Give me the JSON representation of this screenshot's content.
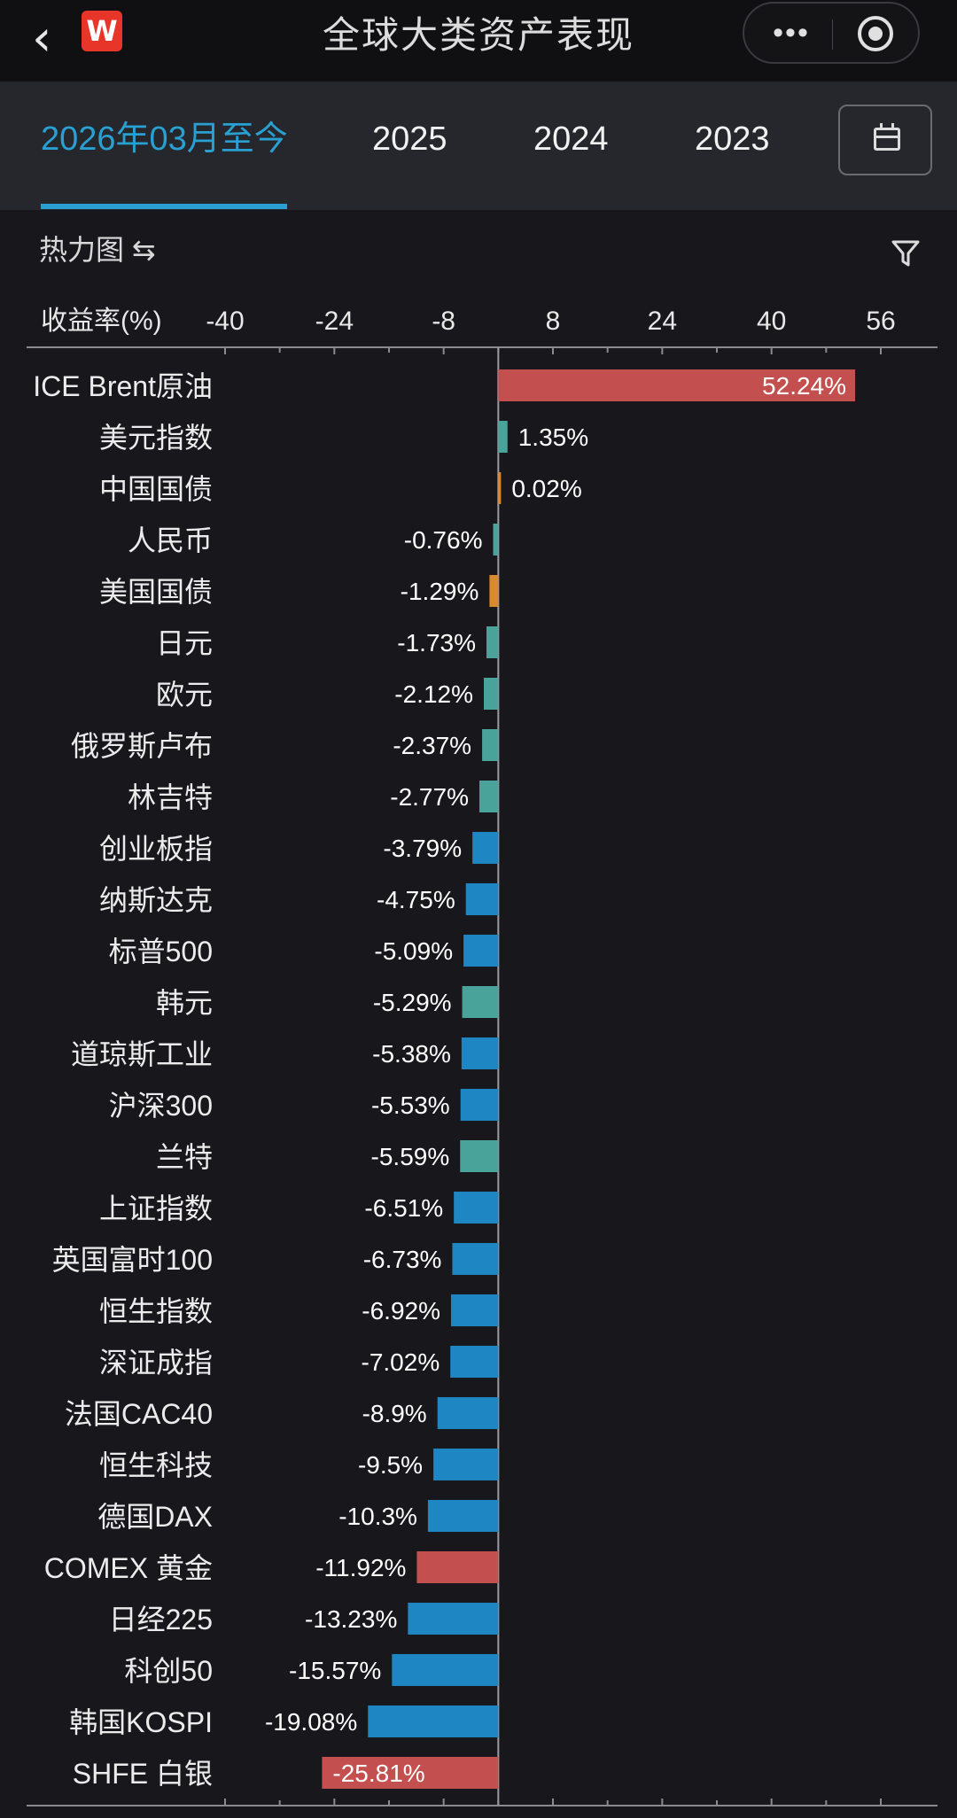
{
  "nav": {
    "back_icon": "chevron-left-icon",
    "logo_letter": "W",
    "title": "全球大类资产表现",
    "more_icon": "more-dots-icon",
    "more_glyph": "•••",
    "target_icon": "target-circle-icon"
  },
  "tabs": [
    {
      "label": "2026年03月至今",
      "active": true
    },
    {
      "label": "2025",
      "active": false
    },
    {
      "label": "2024",
      "active": false
    },
    {
      "label": "2023",
      "active": false
    }
  ],
  "calendar_icon": "calendar-icon",
  "subheader": {
    "label": "热力图 ⇆",
    "filter_icon": "filter-icon"
  },
  "chart_data": {
    "type": "bar",
    "orientation": "horizontal",
    "ylabel": "收益率(%)",
    "xlim": [
      -40,
      56
    ],
    "ticks": [
      -40,
      -24,
      -8,
      8,
      24,
      40,
      56
    ],
    "categories": [
      "ICE Brent原油",
      "美元指数",
      "中国国债",
      "人民币",
      "美国国债",
      "日元",
      "欧元",
      "俄罗斯卢布",
      "林吉特",
      "创业板指",
      "纳斯达克",
      "标普500",
      "韩元",
      "道琼斯工业",
      "沪深300",
      "兰特",
      "上证指数",
      "英国富时100",
      "恒生指数",
      "深证成指",
      "法国CAC40",
      "恒生科技",
      "德国DAX",
      "COMEX 黄金",
      "日经225",
      "科创50",
      "韩国KOSPI",
      "SHFE 白银"
    ],
    "values": [
      52.24,
      1.35,
      0.02,
      -0.76,
      -1.29,
      -1.73,
      -2.12,
      -2.37,
      -2.77,
      -3.79,
      -4.75,
      -5.09,
      -5.29,
      -5.38,
      -5.53,
      -5.59,
      -6.51,
      -6.73,
      -6.92,
      -7.02,
      -8.9,
      -9.5,
      -10.3,
      -11.92,
      -13.23,
      -15.57,
      -19.08,
      -25.81
    ],
    "labels": [
      "52.24%",
      "1.35%",
      "0.02%",
      "-0.76%",
      "-1.29%",
      "-1.73%",
      "-2.12%",
      "-2.37%",
      "-2.77%",
      "-3.79%",
      "-4.75%",
      "-5.09%",
      "-5.29%",
      "-5.38%",
      "-5.53%",
      "-5.59%",
      "-6.51%",
      "-6.73%",
      "-6.92%",
      "-7.02%",
      "-8.9%",
      "-9.5%",
      "-10.3%",
      "-11.92%",
      "-13.23%",
      "-15.57%",
      "-19.08%",
      "-25.81%"
    ],
    "colors": [
      "#c44f4f",
      "#4aa39a",
      "#d98a2e",
      "#4aa39a",
      "#d98a2e",
      "#4aa39a",
      "#4aa39a",
      "#4aa39a",
      "#4aa39a",
      "#1f86c4",
      "#1f86c4",
      "#1f86c4",
      "#4aa39a",
      "#1f86c4",
      "#1f86c4",
      "#4aa39a",
      "#1f86c4",
      "#1f86c4",
      "#1f86c4",
      "#1f86c4",
      "#1f86c4",
      "#1f86c4",
      "#1f86c4",
      "#c44f4f",
      "#1f86c4",
      "#1f86c4",
      "#1f86c4",
      "#c44f4f"
    ],
    "grid": false,
    "legend": "none"
  }
}
